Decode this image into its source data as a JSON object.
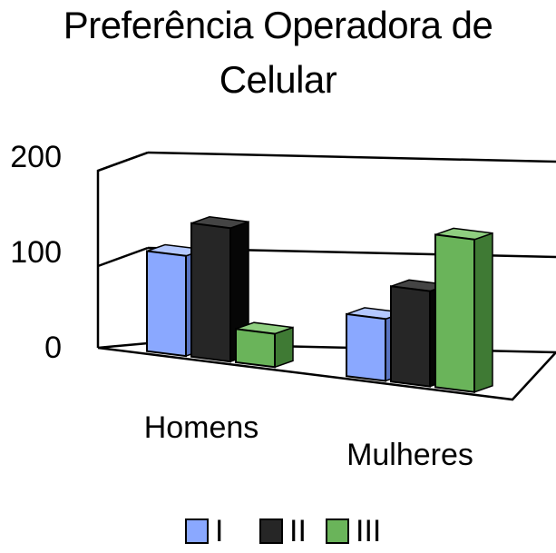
{
  "chart_data": {
    "type": "bar",
    "title_lines": [
      "Preferência Operadora de",
      "Celular"
    ],
    "categories": [
      "Homens",
      "Mulheres"
    ],
    "series": [
      {
        "name": "I",
        "values": [
          105,
          65
        ]
      },
      {
        "name": "II",
        "values": [
          140,
          100
        ]
      },
      {
        "name": "III",
        "values": [
          35,
          160
        ]
      }
    ],
    "ylim": [
      0,
      200
    ],
    "y_ticks": [
      0,
      100,
      200
    ],
    "y_tick_labels": [
      "0",
      "100",
      "200"
    ],
    "grid": true,
    "legend_position": "bottom",
    "three_d": true
  },
  "colors": {
    "I": {
      "front": "#8aa8ff",
      "side": "#5a74c2",
      "top": "#b4c8ff"
    },
    "II": {
      "front": "#262626",
      "side": "#060606",
      "top": "#444444"
    },
    "III": {
      "front": "#6ab45a",
      "side": "#3f7a34",
      "top": "#8fcf80"
    }
  }
}
